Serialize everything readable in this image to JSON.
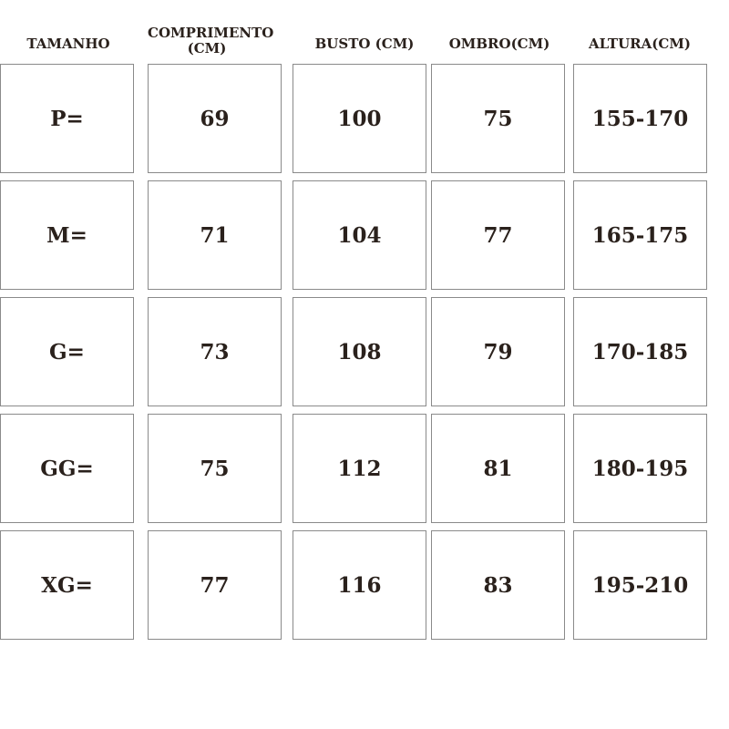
{
  "table": {
    "headers": [
      "TAMANHO",
      "COMPRIMENTO (CM)",
      "BUSTO (CM)",
      "OMBRO(CM)",
      "ALTURA(CM)"
    ],
    "rows": [
      [
        "P=",
        69,
        100,
        75,
        "155-170"
      ],
      [
        "M=",
        71,
        104,
        77,
        "165-175"
      ],
      [
        "G=",
        73,
        108,
        79,
        "170-185"
      ],
      [
        "GG=",
        75,
        112,
        81,
        "180-195"
      ],
      [
        "XG=",
        77,
        116,
        83,
        "195-210"
      ]
    ]
  }
}
